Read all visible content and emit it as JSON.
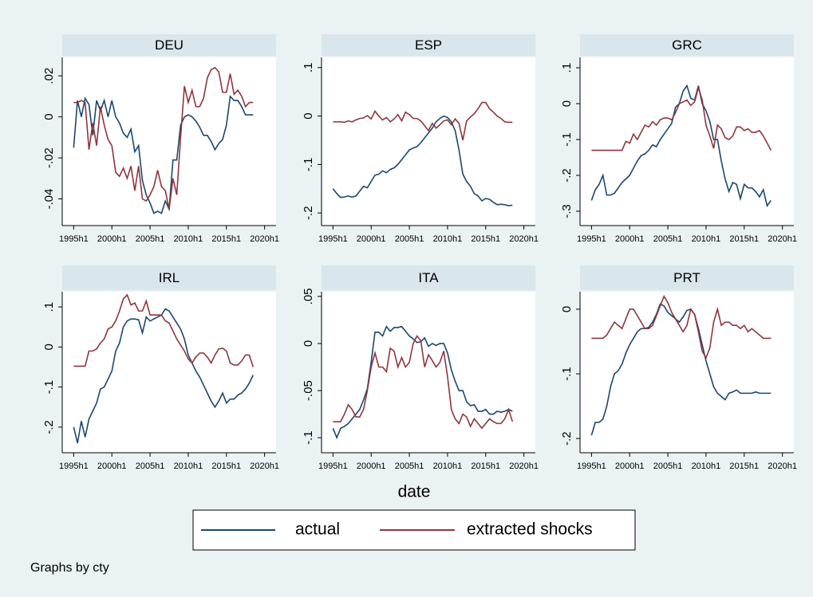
{
  "chart_data": {
    "type": "line",
    "xlabel": "date",
    "note": "Graphs by cty",
    "x": [
      70,
      71,
      72,
      73,
      74,
      75,
      76,
      77,
      78,
      79,
      80,
      81,
      82,
      83,
      84,
      85,
      86,
      87,
      88,
      89,
      90,
      91,
      92,
      93,
      94,
      95,
      96,
      97,
      98,
      99,
      100,
      101,
      102,
      103,
      104,
      105,
      106,
      107,
      108,
      109,
      110,
      111,
      112,
      113,
      114,
      115,
      116,
      117
    ],
    "xlim": [
      67,
      123
    ],
    "xticks": [
      {
        "value": 70,
        "label": "1995h1"
      },
      {
        "value": 80,
        "label": "2000h1"
      },
      {
        "value": 90,
        "label": "2005h1"
      },
      {
        "value": 100,
        "label": "2010h1"
      },
      {
        "value": 110,
        "label": "2015h1"
      },
      {
        "value": 120,
        "label": "2020h1"
      }
    ],
    "series": [
      {
        "name": "actual",
        "color": "#1a476f"
      },
      {
        "name": "extracted shocks",
        "color": "#90353b"
      }
    ],
    "panels": [
      {
        "title": "DEU",
        "ylim": [
          -0.053,
          0.029
        ],
        "yticks": [
          {
            "value": -0.04,
            "label": "-.04"
          },
          {
            "value": -0.02,
            "label": "-.02"
          },
          0,
          {
            "value": 0.02,
            "label": ".02"
          }
        ],
        "series": [
          {
            "values": [
              -0.015,
              0.008,
              0,
              0.009,
              0.006,
              -0.009,
              0.008,
              0.003,
              0.008,
              0,
              0.008,
              0,
              -0.003,
              -0.008,
              -0.01,
              -0.006,
              -0.017,
              -0.014,
              -0.031,
              -0.038,
              -0.042,
              -0.047,
              -0.046,
              -0.047,
              -0.041,
              -0.045,
              -0.021,
              -0.021,
              -0.004,
              0,
              0.001,
              0,
              -0.002,
              -0.005,
              -0.009,
              -0.009,
              -0.012,
              -0.016,
              -0.013,
              -0.011,
              -0.004,
              0.01,
              0.008,
              0.008,
              0.005,
              0.001,
              0.001,
              0.001
            ]
          },
          {
            "values": [
              0.007,
              0.007,
              0.008,
              0.007,
              -0.016,
              -0.003,
              -0.014,
              0.005,
              -0.004,
              -0.011,
              -0.014,
              -0.027,
              -0.029,
              -0.025,
              -0.03,
              -0.024,
              -0.036,
              -0.024,
              -0.04,
              -0.041,
              -0.038,
              -0.034,
              -0.026,
              -0.034,
              -0.036,
              -0.045,
              -0.03,
              -0.038,
              -0.01,
              0.015,
              0.007,
              0.013,
              0.005,
              0.005,
              0.009,
              0.019,
              0.023,
              0.024,
              0.022,
              0.012,
              0.012,
              0.021,
              0.011,
              0.013,
              0.01,
              0.005,
              0.007,
              0.007
            ]
          }
        ]
      },
      {
        "title": "ESP",
        "ylim": [
          -0.226,
          0.121
        ],
        "yticks": [
          {
            "value": -0.2,
            "label": "-.2"
          },
          {
            "value": -0.1,
            "label": "-.1"
          },
          0,
          {
            "value": 0.1,
            "label": ".1"
          }
        ],
        "series": [
          {
            "values": [
              -0.15,
              -0.16,
              -0.168,
              -0.167,
              -0.165,
              -0.167,
              -0.165,
              -0.155,
              -0.145,
              -0.148,
              -0.135,
              -0.122,
              -0.12,
              -0.113,
              -0.117,
              -0.11,
              -0.107,
              -0.1,
              -0.09,
              -0.08,
              -0.07,
              -0.066,
              -0.063,
              -0.055,
              -0.045,
              -0.035,
              -0.025,
              -0.012,
              -0.005,
              0,
              -0.003,
              -0.012,
              -0.03,
              -0.07,
              -0.12,
              -0.135,
              -0.145,
              -0.16,
              -0.165,
              -0.175,
              -0.17,
              -0.172,
              -0.178,
              -0.183,
              -0.182,
              -0.183,
              -0.185,
              -0.184
            ]
          },
          {
            "values": [
              -0.012,
              -0.012,
              -0.012,
              -0.013,
              -0.01,
              -0.012,
              -0.008,
              -0.005,
              -0.004,
              0.001,
              -0.006,
              0.01,
              0,
              -0.008,
              -0.003,
              -0.012,
              -0.006,
              0.003,
              -0.01,
              0.008,
              0.003,
              -0.005,
              -0.005,
              -0.01,
              -0.02,
              -0.03,
              -0.015,
              -0.025,
              -0.018,
              -0.01,
              -0.008,
              -0.018,
              -0.006,
              -0.015,
              -0.05,
              -0.01,
              -0.002,
              0.005,
              0.015,
              0.028,
              0.028,
              0.015,
              0.008,
              0,
              -0.005,
              -0.012,
              -0.013,
              -0.013
            ]
          }
        ]
      },
      {
        "title": "GRC",
        "ylim": [
          -0.34,
          0.129
        ],
        "yticks": [
          {
            "value": -0.3,
            "label": "-.3"
          },
          {
            "value": -0.2,
            "label": "-.2"
          },
          {
            "value": -0.1,
            "label": "-.1"
          },
          0,
          {
            "value": 0.1,
            "label": ".1"
          }
        ],
        "series": [
          {
            "values": [
              -0.27,
              -0.24,
              -0.225,
              -0.2,
              -0.255,
              -0.255,
              -0.25,
              -0.235,
              -0.22,
              -0.21,
              -0.2,
              -0.18,
              -0.16,
              -0.145,
              -0.14,
              -0.13,
              -0.115,
              -0.12,
              -0.1,
              -0.085,
              -0.07,
              -0.055,
              -0.01,
              0,
              0.035,
              0.05,
              0.015,
              0.01,
              0.05,
              0,
              -0.02,
              -0.05,
              -0.1,
              -0.1,
              -0.16,
              -0.21,
              -0.245,
              -0.22,
              -0.225,
              -0.265,
              -0.225,
              -0.235,
              -0.235,
              -0.245,
              -0.26,
              -0.24,
              -0.285,
              -0.27
            ]
          },
          {
            "values": [
              -0.13,
              -0.13,
              -0.13,
              -0.13,
              -0.13,
              -0.13,
              -0.13,
              -0.13,
              -0.13,
              -0.105,
              -0.11,
              -0.085,
              -0.1,
              -0.08,
              -0.06,
              -0.065,
              -0.05,
              -0.06,
              -0.045,
              -0.04,
              -0.04,
              -0.045,
              -0.025,
              0,
              0.005,
              0.01,
              -0.005,
              0.005,
              0.045,
              0.01,
              -0.06,
              -0.09,
              -0.125,
              -0.06,
              -0.07,
              -0.095,
              -0.1,
              -0.09,
              -0.065,
              -0.065,
              -0.075,
              -0.07,
              -0.08,
              -0.08,
              -0.075,
              -0.09,
              -0.11,
              -0.13
            ]
          }
        ]
      },
      {
        "title": "IRL",
        "ylim": [
          -0.264,
          0.138
        ],
        "yticks": [
          {
            "value": -0.2,
            "label": "-.2"
          },
          {
            "value": -0.1,
            "label": "-.1"
          },
          0,
          {
            "value": 0.1,
            "label": ".1"
          }
        ],
        "series": [
          {
            "values": [
              -0.2,
              -0.24,
              -0.185,
              -0.225,
              -0.18,
              -0.16,
              -0.14,
              -0.105,
              -0.1,
              -0.08,
              -0.06,
              -0.01,
              0.01,
              0.05,
              0.065,
              0.07,
              0.07,
              0.068,
              0.035,
              0.075,
              0.065,
              0.07,
              0.075,
              0.08,
              0.095,
              0.09,
              0.075,
              0.06,
              0.045,
              0.02,
              -0.02,
              -0.04,
              -0.06,
              -0.075,
              -0.095,
              -0.115,
              -0.135,
              -0.15,
              -0.135,
              -0.115,
              -0.14,
              -0.13,
              -0.13,
              -0.12,
              -0.115,
              -0.105,
              -0.09,
              -0.07
            ]
          },
          {
            "values": [
              -0.048,
              -0.048,
              -0.048,
              -0.048,
              -0.01,
              -0.01,
              -0.005,
              0.01,
              0.02,
              0.045,
              0.05,
              0.065,
              0.09,
              0.12,
              0.13,
              0.105,
              0.11,
              0.09,
              0.09,
              0.115,
              0.08,
              0.08,
              0.08,
              0.08,
              0.065,
              0.06,
              0.04,
              0.02,
              0.005,
              -0.01,
              -0.03,
              -0.04,
              -0.025,
              -0.015,
              -0.015,
              -0.025,
              -0.04,
              -0.02,
              -0.005,
              -0.003,
              -0.01,
              -0.04,
              -0.045,
              -0.045,
              -0.035,
              -0.02,
              -0.02,
              -0.05
            ]
          }
        ]
      },
      {
        "title": "ITA",
        "ylim": [
          -0.116,
          0.055
        ],
        "yticks": [
          {
            "value": -0.1,
            "label": "-.1"
          },
          {
            "value": -0.05,
            "label": "-.05"
          },
          0,
          {
            "value": 0.05,
            "label": ".05"
          }
        ],
        "series": [
          {
            "values": [
              -0.09,
              -0.1,
              -0.09,
              -0.088,
              -0.085,
              -0.08,
              -0.075,
              -0.07,
              -0.06,
              -0.048,
              -0.02,
              0.012,
              0.012,
              0.008,
              0.018,
              0.013,
              0.017,
              0.017,
              0.018,
              0.013,
              0.008,
              0.005,
              0.001,
              0.002,
              0.006,
              -0.003,
              0,
              -0.002,
              0,
              0,
              -0.01,
              -0.028,
              -0.04,
              -0.05,
              -0.05,
              -0.062,
              -0.066,
              -0.065,
              -0.072,
              -0.072,
              -0.07,
              -0.075,
              -0.075,
              -0.072,
              -0.073,
              -0.072,
              -0.07,
              -0.072
            ]
          },
          {
            "values": [
              -0.083,
              -0.083,
              -0.083,
              -0.075,
              -0.065,
              -0.07,
              -0.078,
              -0.078,
              -0.07,
              -0.05,
              -0.025,
              -0.01,
              -0.025,
              -0.025,
              -0.03,
              -0.005,
              -0.008,
              -0.025,
              -0.015,
              -0.025,
              -0.02,
              0,
              0.008,
              0.003,
              -0.025,
              -0.012,
              -0.018,
              -0.025,
              -0.02,
              -0.008,
              -0.035,
              -0.07,
              -0.08,
              -0.085,
              -0.075,
              -0.078,
              -0.088,
              -0.08,
              -0.085,
              -0.09,
              -0.085,
              -0.08,
              -0.083,
              -0.085,
              -0.085,
              -0.08,
              -0.07,
              -0.083
            ]
          }
        ]
      },
      {
        "title": "PRT",
        "ylim": [
          -0.222,
          0.027
        ],
        "yticks": [
          {
            "value": -0.2,
            "label": "-.2"
          },
          {
            "value": -0.1,
            "label": "-.1"
          },
          0
        ],
        "series": [
          {
            "values": [
              -0.195,
              -0.175,
              -0.175,
              -0.17,
              -0.15,
              -0.12,
              -0.1,
              -0.095,
              -0.085,
              -0.068,
              -0.055,
              -0.045,
              -0.035,
              -0.03,
              -0.03,
              -0.028,
              -0.02,
              -0.008,
              0.008,
              0.005,
              -0.005,
              -0.01,
              -0.015,
              -0.02,
              -0.012,
              -0.002,
              0,
              -0.008,
              -0.03,
              -0.055,
              -0.08,
              -0.1,
              -0.12,
              -0.13,
              -0.135,
              -0.14,
              -0.13,
              -0.128,
              -0.125,
              -0.13,
              -0.13,
              -0.13,
              -0.13,
              -0.128,
              -0.13,
              -0.13,
              -0.13,
              -0.13
            ]
          },
          {
            "values": [
              -0.045,
              -0.045,
              -0.045,
              -0.045,
              -0.04,
              -0.03,
              -0.02,
              -0.025,
              -0.03,
              -0.015,
              0,
              0,
              -0.01,
              -0.02,
              -0.03,
              -0.03,
              -0.025,
              -0.01,
              0.005,
              0.02,
              0.01,
              -0.005,
              -0.015,
              -0.025,
              -0.035,
              -0.025,
              0,
              -0.008,
              -0.035,
              -0.065,
              -0.075,
              -0.06,
              -0.02,
              0,
              -0.025,
              -0.02,
              -0.02,
              -0.025,
              -0.025,
              -0.03,
              -0.025,
              -0.035,
              -0.03,
              -0.035,
              -0.04,
              -0.045,
              -0.045,
              -0.045
            ]
          }
        ]
      }
    ]
  }
}
